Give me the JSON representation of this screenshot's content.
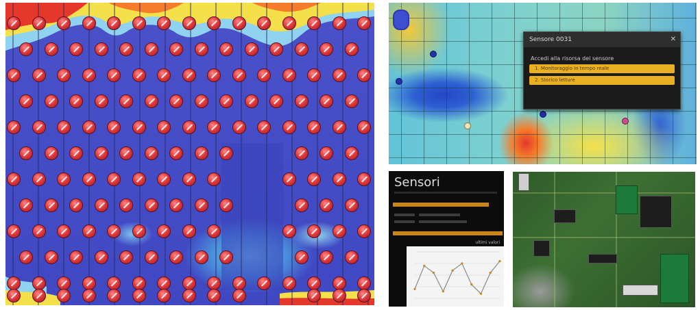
{
  "main_map": {
    "heat_colors": {
      "cold": "#3f48c2",
      "cool": "#6fc6ee",
      "warm": "#f4e04a",
      "hot": "#e4382a"
    },
    "sensor_icon": "sensor-pin-icon"
  },
  "heatmap_panel": {
    "popup": {
      "title": "Sensore 0031",
      "close_icon": "close-icon",
      "prompt": "Accedi alla risorsa del sensore",
      "options": [
        "1. Monitoraggio in tempo reale",
        "2. Storico letture"
      ]
    },
    "zoom_icon": "zoom-control-icon"
  },
  "dashboard_panel": {
    "title": "Sensori",
    "chart_caption": "ultimi valori",
    "accent": "#c8861c",
    "chart_data": {
      "type": "line",
      "x": [
        1,
        2,
        3,
        4,
        5,
        6,
        7,
        8,
        9,
        10
      ],
      "series": [
        {
          "values": [
            20,
            70,
            55,
            15,
            60,
            75,
            30,
            10,
            55,
            80
          ]
        }
      ]
    }
  },
  "board_panel": {
    "board_color": "#3d6f33"
  }
}
